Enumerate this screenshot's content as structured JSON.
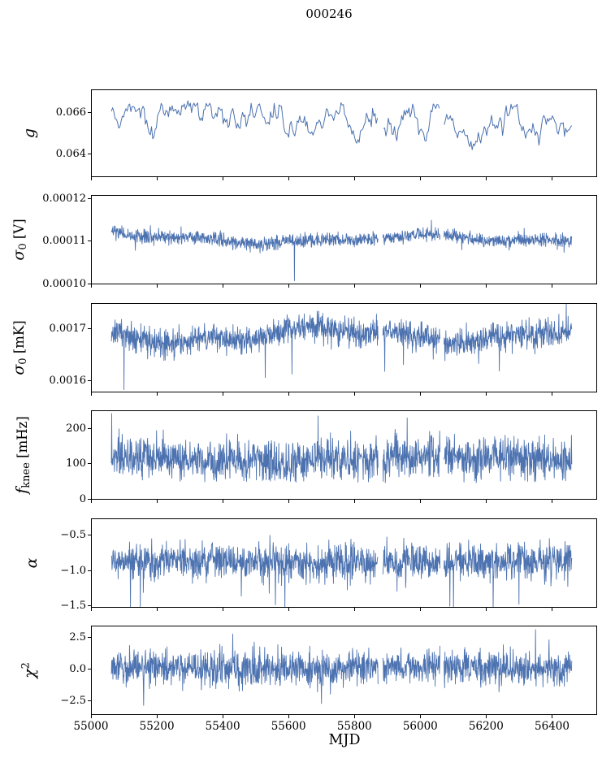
{
  "chart_data": {
    "type": "line",
    "title": "000246",
    "layout": {
      "rows": 6,
      "shared_x": true,
      "grid": false,
      "legend": false
    },
    "line_color": "#4c72b0",
    "x": {
      "label": "MJD",
      "lim": [
        55000,
        56537
      ],
      "ticks": [
        55000,
        55200,
        55400,
        55600,
        55800,
        56000,
        56200,
        56400
      ],
      "tick_labels": [
        "55000",
        "55200",
        "55400",
        "55600",
        "55800",
        "56000",
        "56200",
        "56400"
      ],
      "data_start": 55062,
      "data_end": 56460,
      "gaps": [
        [
          55872,
          55886
        ],
        [
          56060,
          56072
        ]
      ]
    },
    "panels": [
      {
        "id": "g",
        "ylabel": {
          "sym": "g",
          "sub": "",
          "sup": "",
          "unit": ""
        },
        "ylim": [
          0.0629,
          0.0671
        ],
        "yticks": [
          {
            "v": 0.064,
            "label": "0.064"
          },
          {
            "v": 0.066,
            "label": "0.066"
          }
        ],
        "approx_range": [
          0.0638,
          0.0663
        ],
        "series": {
          "kind": "walk",
          "seed": 42,
          "n": 380,
          "mean": 0.0655,
          "start": 0.0659,
          "step": 0.00025,
          "reversion": 0.08,
          "jitter": 7e-05,
          "trend_amp": 0.00045,
          "trend_period": 1600,
          "trend_phase": -0.2,
          "min": 0.0637,
          "max": 0.0664
        }
      },
      {
        "id": "sigma0_V",
        "ylabel": {
          "sym": "σ",
          "sub": "0",
          "sup": "",
          "unit": " [V]"
        },
        "ylim": [
          9.99e-05,
          0.0001208
        ],
        "yticks": [
          {
            "v": 0.0001,
            "label": "0.00010"
          },
          {
            "v": 0.00011,
            "label": "0.00011"
          },
          {
            "v": 0.00012,
            "label": "0.00012"
          }
        ],
        "approx_range": [
          0.000104,
          0.000115
        ],
        "series": {
          "kind": "band",
          "seed": 7,
          "n": 1500,
          "base": 0.0001105,
          "wiggle": [
            {
              "amp": 7e-07,
              "period": 900,
              "phase": 0.8
            },
            {
              "amp": 4e-07,
              "period": 350,
              "phase": 2.1
            }
          ],
          "sigma": 8e-07,
          "p_dn": 0.012,
          "mag_dn": 1.8e-06,
          "p_up": 0.003,
          "mag_up": 8e-07,
          "start_bump": 1.4e-06,
          "start_tau": 40
        }
      },
      {
        "id": "sigma0_mK",
        "ylabel": {
          "sym": "σ",
          "sub": "0",
          "sup": "",
          "unit": " [mK]"
        },
        "ylim": [
          0.001578,
          0.001748
        ],
        "yticks": [
          {
            "v": 0.0016,
            "label": "0.0016"
          },
          {
            "v": 0.0017,
            "label": "0.0017"
          }
        ],
        "approx_range": [
          0.00158,
          0.00173
        ],
        "series": {
          "kind": "band",
          "seed": 13,
          "n": 1500,
          "base": 0.001688,
          "wiggle": [
            {
              "amp": 1.2e-05,
              "period": 820,
              "phase": 2.4
            },
            {
              "amp": 6e-06,
              "period": 300,
              "phase": 0.5
            }
          ],
          "sigma": 1.3e-05,
          "p_dn": 0.02,
          "mag_dn": 2.2e-05,
          "p_up": 0.004,
          "mag_up": 1e-05,
          "forced": [
            {
              "t": 55100,
              "v": 0.001582
            },
            {
              "t": 55610,
              "v": 0.001612
            },
            {
              "t": 56240,
              "v": 0.001618
            }
          ]
        }
      },
      {
        "id": "fknee",
        "ylabel": {
          "sym": "f",
          "sub": "knee",
          "sup": "",
          "unit": " [mHz]"
        },
        "ylim": [
          -2,
          252
        ],
        "yticks": [
          {
            "v": 0,
            "label": "0"
          },
          {
            "v": 100,
            "label": "100"
          },
          {
            "v": 200,
            "label": "200"
          }
        ],
        "approx_range": [
          50,
          245
        ],
        "series": {
          "kind": "band",
          "seed": 99,
          "n": 1500,
          "base": 113,
          "wiggle": [
            {
              "amp": 7,
              "period": 1000,
              "phase": 1.2
            },
            {
              "amp": 4,
              "period": 260,
              "phase": 3.0
            }
          ],
          "sigma": 30,
          "p_dn": 0.004,
          "mag_dn": 18,
          "p_up": 0.005,
          "mag_up": 30,
          "min": 45,
          "forced": [
            {
              "t": 55063,
              "v": 245
            },
            {
              "t": 55690,
              "v": 238
            },
            {
              "t": 55960,
              "v": 232
            }
          ]
        }
      },
      {
        "id": "alpha",
        "ylabel": {
          "sym": "α",
          "sub": "",
          "sup": "",
          "unit": ""
        },
        "ylim": [
          -1.53,
          -0.26
        ],
        "yticks": [
          {
            "v": -0.5,
            "label": "−0.5"
          },
          {
            "v": -1.0,
            "label": "−1.0"
          },
          {
            "v": -1.5,
            "label": "−1.5"
          }
        ],
        "approx_range": [
          -1.55,
          -0.5
        ],
        "series": {
          "kind": "band",
          "seed": 5,
          "n": 1500,
          "base": -0.875,
          "wiggle": [
            {
              "amp": 0.02,
              "period": 1100,
              "phase": 0.3
            }
          ],
          "sigma": 0.13,
          "p_dn": 0.03,
          "mag_dn": 0.17,
          "p_up": 0.004,
          "mag_up": 0.07,
          "forced": [
            {
              "t": 55120,
              "v": -1.62
            },
            {
              "t": 55150,
              "v": -1.56
            },
            {
              "t": 55560,
              "v": -1.5
            },
            {
              "t": 56090,
              "v": -1.52
            },
            {
              "t": 56300,
              "v": -1.49
            }
          ]
        }
      },
      {
        "id": "chi2",
        "ylabel": {
          "sym": "χ",
          "sub": "",
          "sup": "2",
          "unit": ""
        },
        "ylim": [
          -3.6,
          3.4
        ],
        "yticks": [
          {
            "v": 2.5,
            "label": "2.5"
          },
          {
            "v": 0.0,
            "label": "0.0"
          },
          {
            "v": -2.5,
            "label": "−2.5"
          }
        ],
        "approx_range": [
          -2.9,
          3.2
        ],
        "series": {
          "kind": "band",
          "seed": 21,
          "n": 1500,
          "base": 0.12,
          "wiggle": [
            {
              "amp": 0.05,
              "period": 900,
              "phase": 1.9
            }
          ],
          "sigma": 0.7,
          "p_dn": 0.006,
          "mag_dn": 0.55,
          "p_up": 0.006,
          "mag_up": 0.5,
          "forced": [
            {
              "t": 55160,
              "v": -2.9
            },
            {
              "t": 55430,
              "v": 2.8
            },
            {
              "t": 55700,
              "v": -2.75
            },
            {
              "t": 56350,
              "v": 3.15
            }
          ]
        }
      }
    ]
  }
}
